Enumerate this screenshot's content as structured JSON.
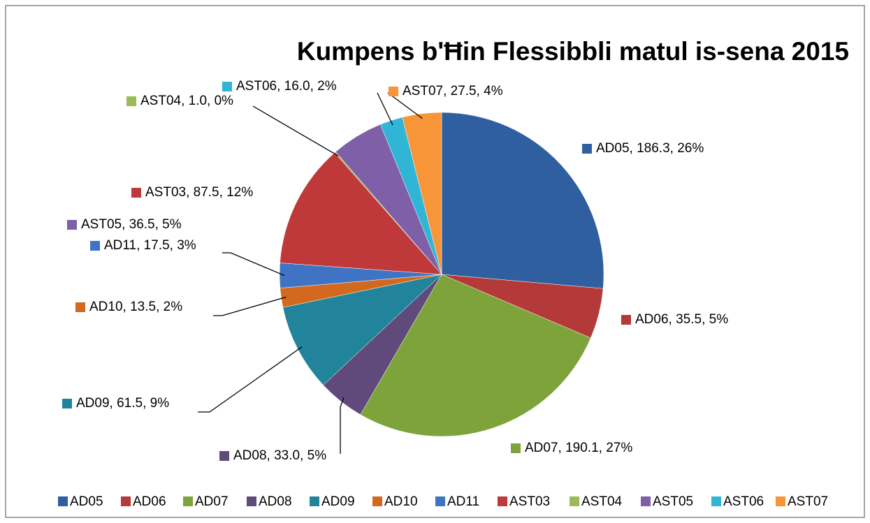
{
  "chart_data": {
    "type": "pie",
    "title": "Kumpens b'Ħin Flessibbli matul is-sena 2015",
    "categories": [
      "AD05",
      "AD06",
      "AD07",
      "AD08",
      "AD09",
      "AD10",
      "AD11",
      "AST03",
      "AST04",
      "AST05",
      "AST06",
      "AST07"
    ],
    "values": [
      186.3,
      35.5,
      190.1,
      33.0,
      61.5,
      13.5,
      17.5,
      87.5,
      1.0,
      36.5,
      16.0,
      27.5
    ],
    "value_labels": [
      "AD05, 186.3, 26%",
      "AD06, 35.5, 5%",
      "AD07, 190.1, 27%",
      "AD08, 33.0, 5%",
      "AD09, 61.5, 9%",
      "AD10, 13.5, 2%",
      "AD11, 17.5, 3%",
      "AST03, 87.5, 12%",
      "AST04, 1.0, 0%",
      "AST05, 36.5, 5%",
      "AST06, 16.0, 2%",
      "AST07, 27.5, 4%"
    ],
    "colors": [
      "#2f5f9f",
      "#b33a38",
      "#7ea33a",
      "#604a7b",
      "#21849a",
      "#d2691e",
      "#3f74c4",
      "#c0393a",
      "#9bbb59",
      "#7f5fa8",
      "#31b5d4",
      "#f79538"
    ],
    "legend": "bottom"
  }
}
